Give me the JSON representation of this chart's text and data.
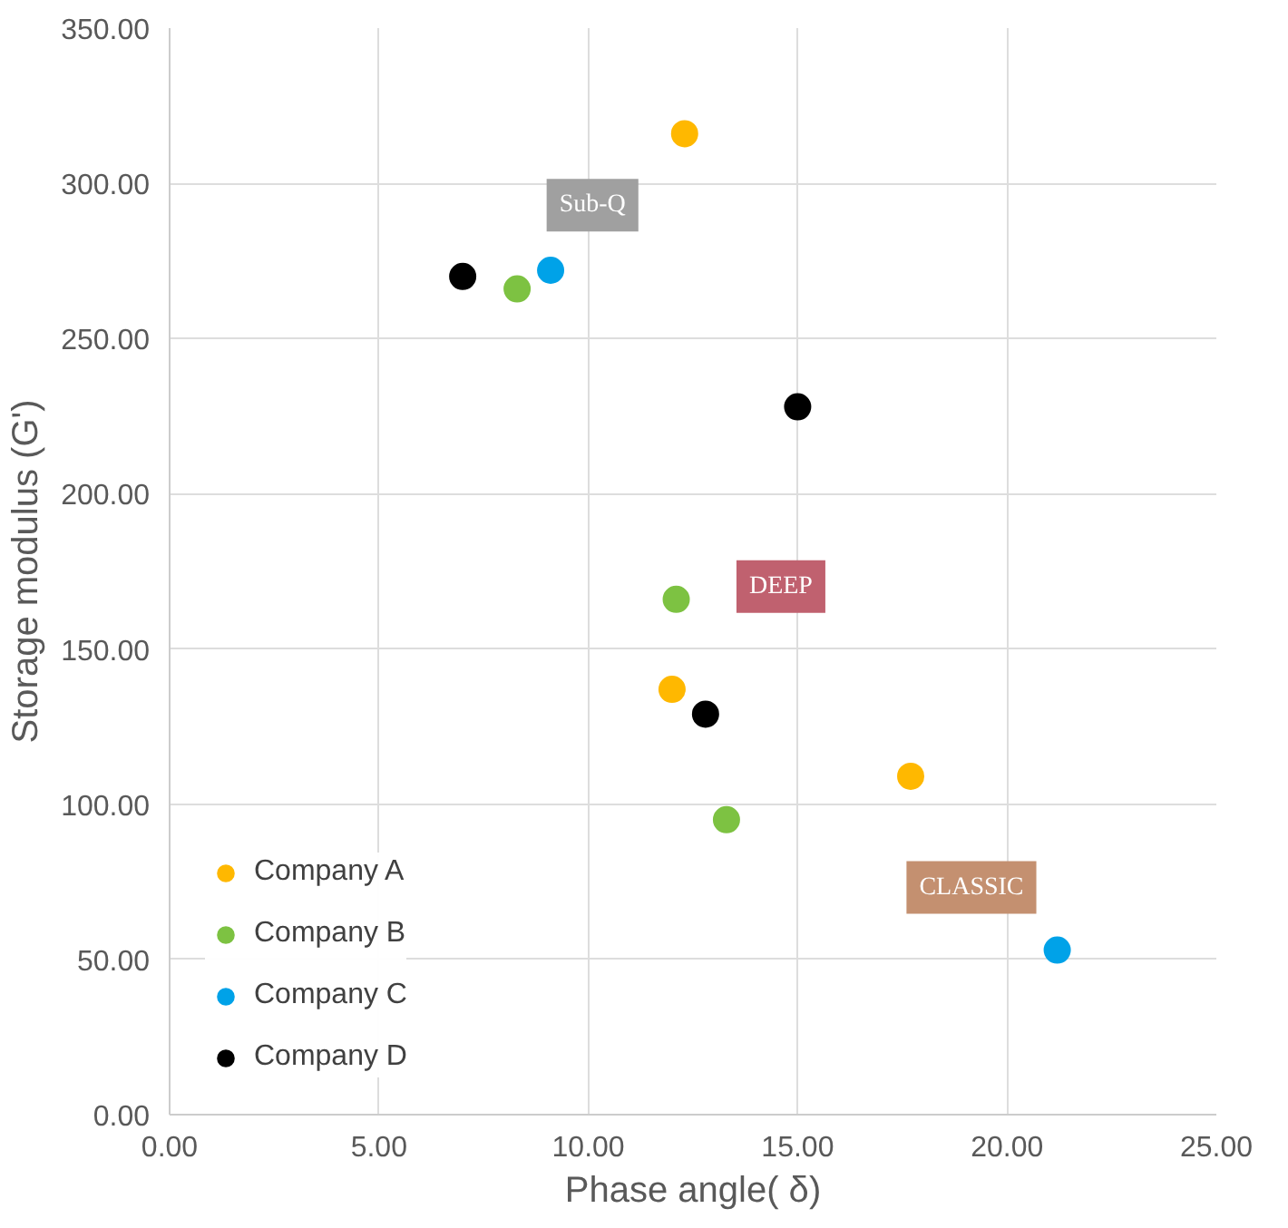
{
  "chart_data": {
    "type": "scatter",
    "xlabel": "Phase angle( δ)",
    "ylabel": "Storage modulus (G')",
    "xlim": [
      0,
      25
    ],
    "xticks": [
      {
        "value": 0,
        "label": "0.00"
      },
      {
        "value": 5,
        "label": "5.00"
      },
      {
        "value": 10,
        "label": "10.00"
      },
      {
        "value": 15,
        "label": "15.00"
      },
      {
        "value": 20,
        "label": "20.00"
      },
      {
        "value": 25,
        "label": "25.00"
      }
    ],
    "ylim": [
      0,
      350
    ],
    "yticks": [
      {
        "value": 0,
        "label": "0.00"
      },
      {
        "value": 50,
        "label": "50.00"
      },
      {
        "value": 100,
        "label": "100.00"
      },
      {
        "value": 150,
        "label": "150.00"
      },
      {
        "value": 200,
        "label": "200.00"
      },
      {
        "value": 250,
        "label": "250.00"
      },
      {
        "value": 300,
        "label": "300.00"
      },
      {
        "value": 350,
        "label": "350.00"
      }
    ],
    "grid": true,
    "legend": "bottom left",
    "marker": "circle",
    "series": [
      {
        "name": "Company A",
        "color": "#ffb800",
        "x": [
          12.3,
          12.0,
          17.7
        ],
        "values": [
          316,
          137,
          109
        ]
      },
      {
        "name": "Company B",
        "color": "#7dc242",
        "x": [
          8.3,
          12.1,
          13.3
        ],
        "values": [
          266,
          166,
          95
        ]
      },
      {
        "name": "Company C",
        "color": "#00a2e8",
        "x": [
          9.1,
          21.2
        ],
        "values": [
          272,
          53
        ]
      },
      {
        "name": "Company D",
        "color": "#000000",
        "x": [
          7.0,
          15.0,
          12.8
        ],
        "values": [
          270,
          228,
          129
        ]
      }
    ],
    "annotations": [
      "Sub-Q",
      "DEEP",
      "CLASSIC"
    ]
  }
}
